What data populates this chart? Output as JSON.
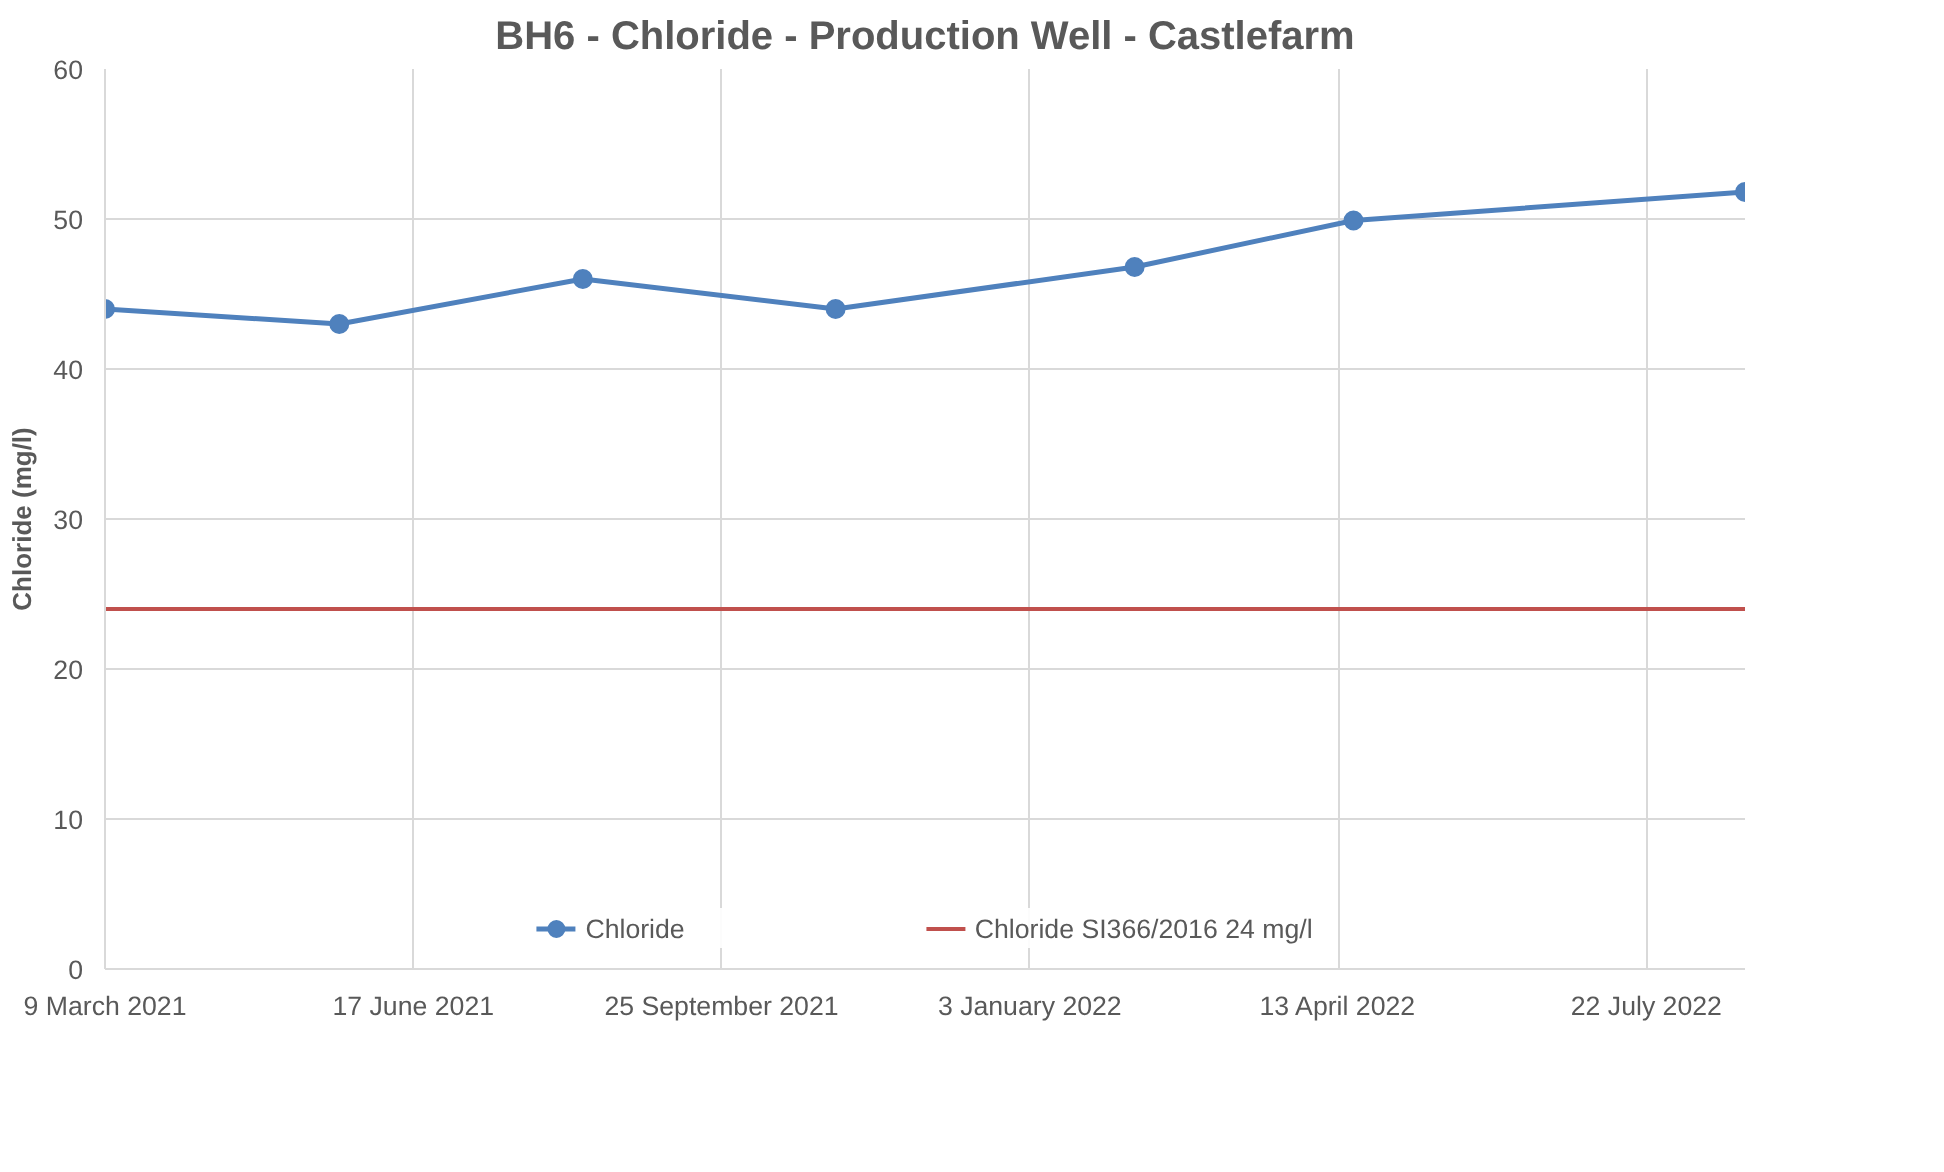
{
  "chart_data": {
    "type": "line",
    "title": "BH6 - Chloride - Production Well - Castlefarm",
    "ylabel": "Chloride (mg/l)",
    "x": [
      "2021-03-09",
      "2021-05-24",
      "2021-08-11",
      "2021-11-01",
      "2022-02-06",
      "2022-04-18",
      "2022-08-23"
    ],
    "series": [
      {
        "name": "Chloride",
        "color": "#4f81bd",
        "values": [
          44,
          43,
          46,
          44,
          46.8,
          49.9,
          51.8
        ]
      }
    ],
    "ref_lines": [
      {
        "axis": "y",
        "value": 24,
        "label": "Chloride SI366/2016 24 mg/l",
        "color": "#c0504d",
        "line_style": "solid"
      }
    ],
    "xlim": [
      "2021-03-09",
      "2022-08-23"
    ],
    "xticks": [
      {
        "value": "2021-03-09",
        "label": "9 March 2021"
      },
      {
        "value": "2021-06-17",
        "label": "17 June 2021"
      },
      {
        "value": "2021-09-25",
        "label": "25 September 2021"
      },
      {
        "value": "2022-01-03",
        "label": "3 January 2022"
      },
      {
        "value": "2022-04-13",
        "label": "13 April 2022"
      },
      {
        "value": "2022-07-22",
        "label": "22 July 2022"
      }
    ],
    "ylim": [
      0,
      60
    ],
    "yticks": [
      0,
      10,
      20,
      30,
      40,
      50,
      60
    ],
    "grid": true,
    "legend": "bottom",
    "marker": "circle",
    "line_style": "solid"
  }
}
